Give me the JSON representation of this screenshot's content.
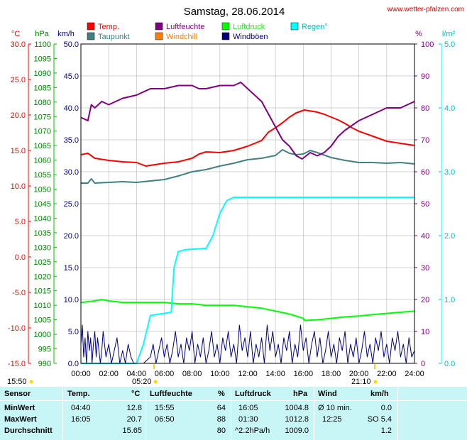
{
  "title": "Samstag, 28.06.2014",
  "website": "www.wetter-pfalzen.com",
  "legend": [
    {
      "label": "Temp.",
      "color": "#ff0000"
    },
    {
      "label": "Luftfeuchte",
      "color": "#800080"
    },
    {
      "label": "Luftdruck",
      "color": "#00ff00"
    },
    {
      "label": "Regen°",
      "color": "#00ffff"
    },
    {
      "label": "Taupunkt",
      "color": "#408080"
    },
    {
      "label": "Windchill",
      "color": "#ff8000"
    },
    {
      "label": "Windböen",
      "color": "#000080"
    }
  ],
  "axes": {
    "unit_c": "°C",
    "unit_hpa": "hPa",
    "unit_kmh": "km/h",
    "unit_pct": "%",
    "unit_lm2": "l/m²",
    "c_ticks": [
      "30.0",
      "25.0",
      "20.0",
      "15.0",
      "10.0",
      "5.0",
      "0.0",
      "-5.0",
      "-10.0",
      "-15.0"
    ],
    "hpa_ticks": [
      "1100",
      "1095",
      "1090",
      "1085",
      "1080",
      "1075",
      "1070",
      "1065",
      "1060",
      "1055",
      "1050",
      "1045",
      "1040",
      "1035",
      "1030",
      "1025",
      "1020",
      "1015",
      "1010",
      "1005",
      "1000",
      "995",
      "990"
    ],
    "kmh_ticks": [
      "50.0",
      "45.0",
      "40.0",
      "35.0",
      "30.0",
      "25.0",
      "20.0",
      "15.0",
      "10.0",
      "5.0",
      "0.0"
    ],
    "pct_ticks": [
      "100",
      "90",
      "80",
      "70",
      "60",
      "50",
      "40",
      "30",
      "20",
      "10",
      "0"
    ],
    "lm2_ticks": [
      "5.0",
      "4.0",
      "3.0",
      "2.0",
      "1.0",
      "0.0"
    ],
    "x_ticks": [
      "00:00",
      "02:00",
      "04:00",
      "06:00",
      "08:00",
      "10:00",
      "12:00",
      "14:00",
      "16:00",
      "18:00",
      "20:00",
      "22:00",
      "24:00"
    ]
  },
  "sun": {
    "sunrise": "05:20",
    "sunset": "21:10",
    "left_time": "15:50"
  },
  "chart_data": {
    "type": "line",
    "x_unit": "hours",
    "xlim": [
      0,
      24
    ],
    "series": [
      {
        "name": "Temp.",
        "unit": "°C",
        "ylim": [
          -15,
          30
        ],
        "color": "#ff0000",
        "points": [
          [
            0,
            14.4
          ],
          [
            0.5,
            14.6
          ],
          [
            1,
            13.9
          ],
          [
            2,
            13.6
          ],
          [
            3,
            13.4
          ],
          [
            4,
            13.3
          ],
          [
            4.67,
            12.8
          ],
          [
            6,
            13.2
          ],
          [
            7,
            13.4
          ],
          [
            8,
            13.9
          ],
          [
            8.5,
            14.5
          ],
          [
            9,
            14.8
          ],
          [
            10,
            14.7
          ],
          [
            11,
            15.0
          ],
          [
            12,
            15.6
          ],
          [
            13,
            16.4
          ],
          [
            13.5,
            17.6
          ],
          [
            14,
            18.2
          ],
          [
            14.5,
            18.9
          ],
          [
            15,
            19.7
          ],
          [
            15.5,
            20.3
          ],
          [
            16.08,
            20.7
          ],
          [
            17,
            20.4
          ],
          [
            17.5,
            20.1
          ],
          [
            18,
            19.7
          ],
          [
            18.5,
            19.3
          ],
          [
            19,
            18.8
          ],
          [
            19.5,
            18.2
          ],
          [
            20,
            17.7
          ],
          [
            21,
            17.0
          ],
          [
            22,
            16.3
          ],
          [
            23,
            16.0
          ],
          [
            24,
            15.7
          ]
        ]
      },
      {
        "name": "Taupunkt",
        "unit": "°C",
        "ylim": [
          -15,
          30
        ],
        "color": "#408080",
        "points": [
          [
            0,
            10.4
          ],
          [
            0.5,
            10.4
          ],
          [
            0.75,
            11.0
          ],
          [
            1,
            10.4
          ],
          [
            2,
            10.5
          ],
          [
            3,
            10.6
          ],
          [
            4,
            10.5
          ],
          [
            5,
            10.7
          ],
          [
            6,
            10.9
          ],
          [
            7,
            11.4
          ],
          [
            8,
            12.0
          ],
          [
            9,
            12.3
          ],
          [
            10,
            12.8
          ],
          [
            11,
            13.2
          ],
          [
            12,
            13.7
          ],
          [
            13,
            13.9
          ],
          [
            14,
            14.3
          ],
          [
            14.5,
            15.1
          ],
          [
            15,
            14.6
          ],
          [
            15.5,
            14.4
          ],
          [
            16,
            14.5
          ],
          [
            16.5,
            15.0
          ],
          [
            17,
            14.7
          ],
          [
            18,
            14.0
          ],
          [
            19,
            13.6
          ],
          [
            20,
            13.3
          ],
          [
            21,
            13.3
          ],
          [
            22,
            13.2
          ],
          [
            23,
            13.3
          ],
          [
            24,
            13.1
          ]
        ]
      },
      {
        "name": "Luftfeuchte",
        "unit": "%",
        "ylim": [
          0,
          100
        ],
        "color": "#800080",
        "points": [
          [
            0,
            77
          ],
          [
            0.5,
            76
          ],
          [
            0.75,
            81
          ],
          [
            1,
            80
          ],
          [
            1.5,
            82
          ],
          [
            2,
            81
          ],
          [
            3,
            83
          ],
          [
            4,
            84
          ],
          [
            5,
            86
          ],
          [
            6,
            86
          ],
          [
            7,
            87
          ],
          [
            8,
            87
          ],
          [
            8.5,
            86
          ],
          [
            9,
            86
          ],
          [
            10,
            87
          ],
          [
            11,
            87
          ],
          [
            11.5,
            88
          ],
          [
            12,
            86
          ],
          [
            12.5,
            84
          ],
          [
            13,
            82
          ],
          [
            13.5,
            78
          ],
          [
            14,
            74
          ],
          [
            14.5,
            70
          ],
          [
            15,
            68
          ],
          [
            15.5,
            65
          ],
          [
            15.92,
            64
          ],
          [
            16.5,
            66
          ],
          [
            17,
            65
          ],
          [
            17.5,
            66
          ],
          [
            18,
            68
          ],
          [
            18.5,
            71
          ],
          [
            19,
            73
          ],
          [
            20,
            76
          ],
          [
            21,
            78
          ],
          [
            22,
            80
          ],
          [
            23,
            80
          ],
          [
            24,
            82
          ]
        ]
      },
      {
        "name": "Luftdruck",
        "unit": "hPa",
        "ylim": [
          990,
          1100
        ],
        "color": "#00ff00",
        "points": [
          [
            0,
            1011
          ],
          [
            1,
            1011.5
          ],
          [
            1.5,
            1012
          ],
          [
            2,
            1011.5
          ],
          [
            3,
            1011
          ],
          [
            4,
            1011
          ],
          [
            5,
            1011
          ],
          [
            6,
            1011
          ],
          [
            7,
            1010.5
          ],
          [
            8,
            1010.5
          ],
          [
            9,
            1010
          ],
          [
            10,
            1010
          ],
          [
            11,
            1010
          ],
          [
            12,
            1009.5
          ],
          [
            13,
            1009
          ],
          [
            13.5,
            1008.5
          ],
          [
            14,
            1008
          ],
          [
            15,
            1007
          ],
          [
            16,
            1005.5
          ],
          [
            16.08,
            1004.8
          ],
          [
            17,
            1005
          ],
          [
            18,
            1005.5
          ],
          [
            19,
            1006
          ],
          [
            20,
            1006.3
          ],
          [
            21,
            1006.8
          ],
          [
            22,
            1007.2
          ],
          [
            23,
            1007.6
          ],
          [
            24,
            1008
          ]
        ]
      },
      {
        "name": "Regen°",
        "unit": "l/m²",
        "ylim": [
          0,
          5
        ],
        "color": "#00ffff",
        "points": [
          [
            0,
            0
          ],
          [
            4,
            0
          ],
          [
            4.5,
            0.3
          ],
          [
            5,
            0.75
          ],
          [
            6.5,
            0.8
          ],
          [
            6.7,
            1.5
          ],
          [
            7,
            1.75
          ],
          [
            7.5,
            1.78
          ],
          [
            9,
            1.8
          ],
          [
            9.5,
            2.0
          ],
          [
            10,
            2.35
          ],
          [
            10.5,
            2.55
          ],
          [
            11,
            2.6
          ],
          [
            12,
            2.6
          ],
          [
            18,
            2.6
          ],
          [
            24,
            2.6
          ]
        ]
      },
      {
        "name": "Windböen",
        "unit": "km/h",
        "ylim": [
          0,
          50
        ],
        "color": "#000080",
        "points": [
          [
            0,
            3
          ],
          [
            0.1,
            6
          ],
          [
            0.2,
            1
          ],
          [
            0.3,
            4
          ],
          [
            0.4,
            0
          ],
          [
            0.5,
            5
          ],
          [
            0.6,
            2
          ],
          [
            0.7,
            4
          ],
          [
            0.8,
            0
          ],
          [
            0.9,
            3
          ],
          [
            1,
            5
          ],
          [
            1.1,
            1
          ],
          [
            1.2,
            4
          ],
          [
            1.4,
            0
          ],
          [
            1.5,
            2
          ],
          [
            1.6,
            5
          ],
          [
            1.8,
            1
          ],
          [
            2,
            3
          ],
          [
            2.2,
            0
          ],
          [
            2.4,
            2
          ],
          [
            2.6,
            4
          ],
          [
            2.8,
            0
          ],
          [
            3,
            2
          ],
          [
            3.2,
            0
          ],
          [
            3.4,
            3
          ],
          [
            3.6,
            1
          ],
          [
            3.8,
            0
          ],
          [
            4,
            0
          ],
          [
            4.5,
            0
          ],
          [
            5,
            1
          ],
          [
            5.2,
            3
          ],
          [
            5.4,
            0
          ],
          [
            5.6,
            2
          ],
          [
            5.8,
            4
          ],
          [
            6,
            1
          ],
          [
            6.2,
            3
          ],
          [
            6.4,
            0
          ],
          [
            6.6,
            2
          ],
          [
            6.8,
            5
          ],
          [
            7,
            1
          ],
          [
            7.2,
            3
          ],
          [
            7.4,
            0
          ],
          [
            7.6,
            4
          ],
          [
            7.8,
            2
          ],
          [
            8,
            5
          ],
          [
            8.2,
            0
          ],
          [
            8.4,
            3
          ],
          [
            8.6,
            1
          ],
          [
            8.8,
            4
          ],
          [
            9,
            0
          ],
          [
            9.2,
            2
          ],
          [
            9.4,
            5
          ],
          [
            9.6,
            1
          ],
          [
            9.8,
            3
          ],
          [
            10,
            0
          ],
          [
            10.2,
            4
          ],
          [
            10.4,
            2
          ],
          [
            10.6,
            5
          ],
          [
            10.8,
            1
          ],
          [
            11,
            3
          ],
          [
            11.2,
            0
          ],
          [
            11.4,
            6
          ],
          [
            11.6,
            2
          ],
          [
            11.8,
            4
          ],
          [
            12,
            1
          ],
          [
            12.2,
            5
          ],
          [
            12.4,
            0
          ],
          [
            12.6,
            3
          ],
          [
            12.8,
            1
          ],
          [
            13,
            4
          ],
          [
            13.2,
            0
          ],
          [
            13.4,
            6
          ],
          [
            13.6,
            2
          ],
          [
            13.8,
            5
          ],
          [
            14,
            1
          ],
          [
            14.2,
            3
          ],
          [
            14.4,
            0
          ],
          [
            14.6,
            4
          ],
          [
            14.8,
            2
          ],
          [
            15,
            5
          ],
          [
            15.2,
            0
          ],
          [
            15.4,
            3
          ],
          [
            15.6,
            1
          ],
          [
            15.8,
            6
          ],
          [
            16,
            2
          ],
          [
            16.2,
            4
          ],
          [
            16.4,
            0
          ],
          [
            16.6,
            3
          ],
          [
            16.8,
            5
          ],
          [
            17,
            1
          ],
          [
            17.2,
            4
          ],
          [
            17.4,
            0
          ],
          [
            17.6,
            2
          ],
          [
            17.8,
            5
          ],
          [
            18,
            1
          ],
          [
            18.2,
            3
          ],
          [
            18.4,
            0
          ],
          [
            18.6,
            4
          ],
          [
            18.8,
            2
          ],
          [
            19,
            5
          ],
          [
            19.2,
            0
          ],
          [
            19.4,
            3
          ],
          [
            19.6,
            1
          ],
          [
            19.8,
            4
          ],
          [
            20,
            0
          ],
          [
            20.2,
            2
          ],
          [
            20.4,
            5
          ],
          [
            20.6,
            1
          ],
          [
            20.8,
            3
          ],
          [
            21,
            0
          ],
          [
            21.2,
            4
          ],
          [
            21.4,
            2
          ],
          [
            21.6,
            5
          ],
          [
            21.8,
            1
          ],
          [
            22,
            3
          ],
          [
            22.2,
            0
          ],
          [
            22.4,
            4
          ],
          [
            22.6,
            2
          ],
          [
            22.8,
            5
          ],
          [
            23,
            1
          ],
          [
            23.2,
            3
          ],
          [
            23.4,
            0
          ],
          [
            23.6,
            4
          ],
          [
            23.8,
            1
          ],
          [
            24,
            2
          ]
        ]
      }
    ]
  },
  "table": {
    "headers": {
      "sensor": "Sensor",
      "temp": "Temp.",
      "temp_unit": "°C",
      "hum": "Luftfeuchte",
      "hum_unit": "%",
      "press": "Luftdruck",
      "press_unit": "hPa",
      "wind": "Wind",
      "wind_unit": "km/h"
    },
    "rows": [
      {
        "label": "MinWert",
        "t_time": "04:40",
        "t_val": "12.8",
        "h_time": "15:55",
        "h_val": "64",
        "p_time": "16:05",
        "p_val": "1004.8",
        "w_time": "Ø 10 min.",
        "w_val": "0.0"
      },
      {
        "label": "MaxWert",
        "t_time": "16:05",
        "t_val": "20.7",
        "h_time": "06:50",
        "h_val": "88",
        "p_time": "01:30",
        "p_val": "1012.8",
        "w_time": "12:25",
        "w_val": "SO 5.4"
      },
      {
        "label": "Durchschnitt",
        "t_time": "",
        "t_val": "15.65",
        "h_time": "",
        "h_val": "80",
        "p_time": "^2.2hPa/h",
        "p_val": "1009.0",
        "w_time": "",
        "w_val": "1.2"
      }
    ]
  }
}
